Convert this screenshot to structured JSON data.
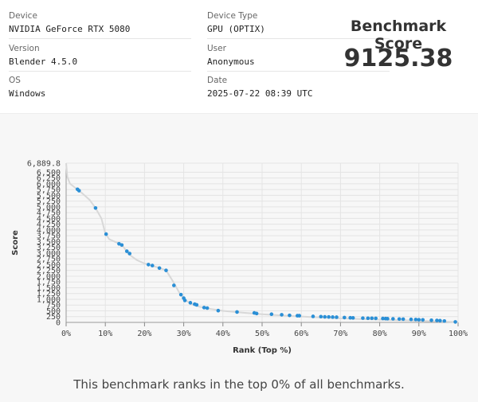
{
  "info": {
    "device_label": "Device",
    "device_value": "NVIDIA GeForce RTX 5080",
    "version_label": "Version",
    "version_value": "Blender 4.5.0",
    "os_label": "OS",
    "os_value": "Windows",
    "device_type_label": "Device Type",
    "device_type_value": "GPU (OPTIX)",
    "user_label": "User",
    "user_value": "Anonymous",
    "date_label": "Date",
    "date_value": "2025-07-22 08:39 UTC"
  },
  "score": {
    "title": "Benchmark Score",
    "value": "9125.38"
  },
  "footer_text": "This benchmark ranks in the top 0% of all benchmarks.",
  "colors": {
    "point": "#2a8fd6",
    "line": "#d8d8d8",
    "grid": "#e4e4e4"
  },
  "chart_data": {
    "type": "scatter",
    "xlabel": "Rank (Top %)",
    "ylabel": "Score",
    "xlim": [
      0,
      100
    ],
    "ylim": [
      0,
      6889.8
    ],
    "x_ticks": [
      "0%",
      "10%",
      "20%",
      "30%",
      "40%",
      "50%",
      "60%",
      "70%",
      "80%",
      "90%",
      "100%"
    ],
    "y_ticks": [
      "0",
      "250",
      "500",
      "750",
      "1,000",
      "1,250",
      "1,500",
      "1,750",
      "2,000",
      "2,250",
      "2,500",
      "2,750",
      "3,000",
      "3,250",
      "3,500",
      "3,750",
      "4,000",
      "4,250",
      "4,500",
      "4,750",
      "5,000",
      "5,250",
      "5,500",
      "5,750",
      "6,000",
      "6,250",
      "6,500",
      "6,889.8"
    ],
    "grid": true,
    "curve": [
      [
        0,
        6889.8
      ],
      [
        0.3,
        6300
      ],
      [
        1,
        6000
      ],
      [
        2.5,
        5800
      ],
      [
        4,
        5600
      ],
      [
        6,
        5300
      ],
      [
        7.5,
        4950
      ],
      [
        9,
        4500
      ],
      [
        10,
        3850
      ],
      [
        11,
        3600
      ],
      [
        13,
        3450
      ],
      [
        14.5,
        3300
      ],
      [
        16,
        2950
      ],
      [
        18,
        2700
      ],
      [
        20,
        2550
      ],
      [
        22,
        2450
      ],
      [
        24,
        2350
      ],
      [
        25.5,
        2250
      ],
      [
        27,
        1850
      ],
      [
        28,
        1550
      ],
      [
        29,
        1250
      ],
      [
        30.5,
        950
      ],
      [
        32,
        800
      ],
      [
        34,
        680
      ],
      [
        37,
        580
      ],
      [
        40,
        500
      ],
      [
        45,
        420
      ],
      [
        50,
        350
      ],
      [
        55,
        300
      ],
      [
        60,
        255
      ],
      [
        65,
        210
      ],
      [
        70,
        175
      ],
      [
        75,
        145
      ],
      [
        80,
        120
      ],
      [
        85,
        95
      ],
      [
        90,
        70
      ],
      [
        95,
        45
      ],
      [
        100,
        15
      ]
    ],
    "points": [
      [
        2.9,
        5760
      ],
      [
        3.3,
        5700
      ],
      [
        7.5,
        4950
      ],
      [
        10.2,
        3820
      ],
      [
        13.5,
        3400
      ],
      [
        14.2,
        3350
      ],
      [
        15.5,
        3080
      ],
      [
        16.2,
        2980
      ],
      [
        21,
        2500
      ],
      [
        22,
        2460
      ],
      [
        23.8,
        2350
      ],
      [
        25.5,
        2250
      ],
      [
        27.5,
        1600
      ],
      [
        29.3,
        1200
      ],
      [
        30,
        1050
      ],
      [
        30.3,
        950
      ],
      [
        31.7,
        850
      ],
      [
        32.8,
        790
      ],
      [
        33.3,
        760
      ],
      [
        35.2,
        640
      ],
      [
        36,
        620
      ],
      [
        38.8,
        510
      ],
      [
        43.6,
        450
      ],
      [
        48,
        410
      ],
      [
        48.6,
        385
      ],
      [
        52.4,
        355
      ],
      [
        55,
        330
      ],
      [
        57,
        305
      ],
      [
        59,
        290
      ],
      [
        59.5,
        290
      ],
      [
        63,
        260
      ],
      [
        65,
        250
      ],
      [
        66,
        240
      ],
      [
        67,
        235
      ],
      [
        68,
        230
      ],
      [
        69,
        225
      ],
      [
        71,
        210
      ],
      [
        72.5,
        200
      ],
      [
        73.2,
        195
      ],
      [
        75.7,
        185
      ],
      [
        77,
        180
      ],
      [
        78,
        180
      ],
      [
        79,
        175
      ],
      [
        80.8,
        170
      ],
      [
        81.5,
        165
      ],
      [
        82,
        160
      ],
      [
        83.4,
        155
      ],
      [
        85,
        145
      ],
      [
        86,
        140
      ],
      [
        88,
        130
      ],
      [
        89.2,
        125
      ],
      [
        90,
        115
      ],
      [
        91,
        110
      ],
      [
        93.2,
        95
      ],
      [
        94.6,
        85
      ],
      [
        95.4,
        75
      ],
      [
        96.5,
        60
      ],
      [
        99.3,
        20
      ]
    ]
  }
}
